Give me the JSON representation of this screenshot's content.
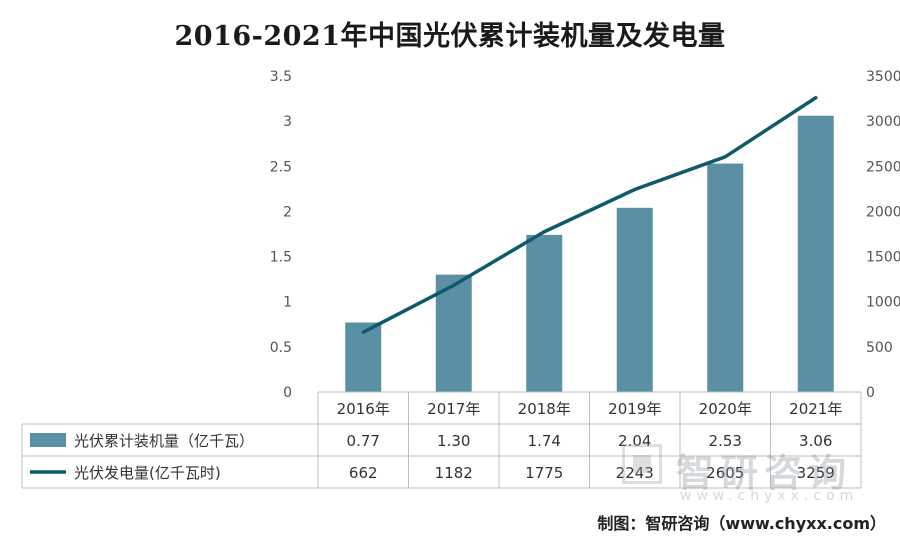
{
  "chart_data": {
    "type": "bar+line",
    "title": "2016-2021年中国光伏累计装机量及发电量",
    "categories": [
      "2016年",
      "2017年",
      "2018年",
      "2019年",
      "2020年",
      "2021年"
    ],
    "series": [
      {
        "name": "光伏累计装机量（亿千瓦）",
        "type": "bar",
        "axis": "left",
        "values": [
          0.77,
          1.3,
          1.74,
          2.04,
          2.53,
          3.06
        ],
        "labels": [
          "0.77",
          "1.30",
          "1.74",
          "2.04",
          "2.53",
          "3.06"
        ],
        "color": "#5b8fa3"
      },
      {
        "name": "光伏发电量(亿千瓦时)",
        "type": "line",
        "axis": "right",
        "values": [
          662,
          1182,
          1775,
          2243,
          2605,
          3259
        ],
        "labels": [
          "662",
          "1182",
          "1775",
          "2243",
          "2605",
          "3259"
        ],
        "color": "#0f5a6a"
      }
    ],
    "y_left": {
      "min": 0,
      "max": 3.5,
      "ticks": [
        "0",
        "0.5",
        "1",
        "1.5",
        "2",
        "2.5",
        "3",
        "3.5"
      ]
    },
    "y_right": {
      "min": 0,
      "max": 3500,
      "ticks": [
        "0",
        "500",
        "1000",
        "1500",
        "2000",
        "2500",
        "3000",
        "3500"
      ]
    },
    "grid": false,
    "legend": "data-table"
  },
  "watermark": {
    "name": "智研咨询",
    "url": "www.chyxx.com"
  },
  "source": "制图：智研咨询（www.chyxx.com）"
}
